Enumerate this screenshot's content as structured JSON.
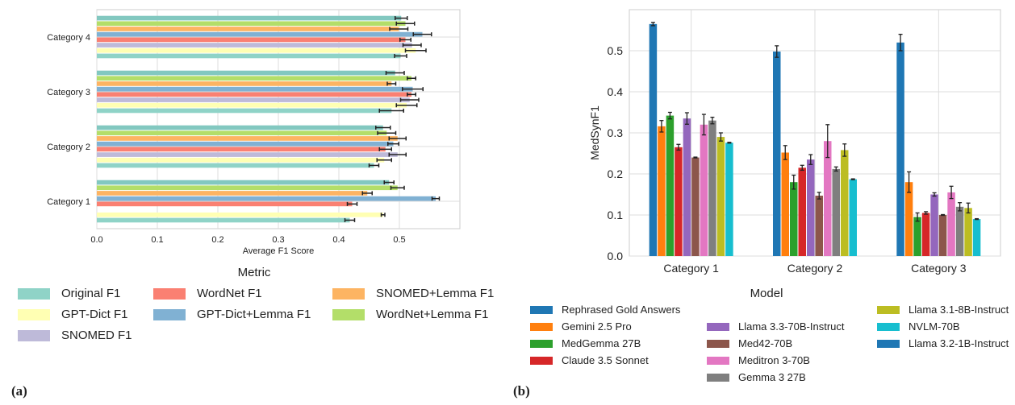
{
  "panel_labels": [
    "(a)",
    "(b)"
  ],
  "chart_data": [
    {
      "type": "bar",
      "orientation": "horizontal",
      "title": "",
      "xlabel": "Average F1 Score",
      "ylabel": "",
      "xlim": [
        0,
        0.6
      ],
      "xticks": [
        "0.0",
        "0.1",
        "0.2",
        "0.3",
        "0.4",
        "0.5"
      ],
      "grid": true,
      "legend_title": "Metric",
      "legend_position": "below",
      "categories": [
        "Category 1",
        "Category 2",
        "Category 3",
        "Category 4"
      ],
      "series": [
        {
          "name": "Original F1",
          "color": "#8fd3c7",
          "values": [
            0.418,
            0.458,
            0.487,
            0.502
          ],
          "errors": [
            0.008,
            0.008,
            0.02,
            0.01
          ]
        },
        {
          "name": "GPT-Dict F1",
          "color": "#ffffb3",
          "values": [
            0.473,
            0.475,
            0.512,
            0.527
          ],
          "errors": [
            0.003,
            0.012,
            0.017,
            0.017
          ]
        },
        {
          "name": "SNOMED F1",
          "color": "#bebad9",
          "values": [
            null,
            0.497,
            0.517,
            0.521
          ],
          "errors": [
            null,
            0.014,
            0.015,
            0.015
          ]
        },
        {
          "name": "WordNet F1",
          "color": "#fa8072",
          "values": [
            0.422,
            0.477,
            0.52,
            0.51
          ],
          "errors": [
            0.008,
            0.01,
            0.007,
            0.009
          ]
        },
        {
          "name": "GPT-Dict+Lemma F1",
          "color": "#80b1d3",
          "values": [
            0.56,
            0.49,
            0.522,
            0.538
          ],
          "errors": [
            0.006,
            0.009,
            0.017,
            0.015
          ]
        },
        {
          "name": "SNOMED+Lemma F1",
          "color": "#fdb462",
          "values": [
            0.447,
            0.497,
            0.487,
            0.499
          ],
          "errors": [
            0.008,
            0.014,
            0.007,
            0.015
          ]
        },
        {
          "name": "WordNet+Lemma F1",
          "color": "#b3de69",
          "values": [
            0.497,
            0.479,
            0.52,
            0.51
          ],
          "errors": [
            0.011,
            0.015,
            0.007,
            0.015
          ]
        },
        {
          "name": "",
          "color": "#82c8c0",
          "values": [
            0.483,
            0.473,
            0.493,
            0.503
          ],
          "errors": [
            0.008,
            0.012,
            0.015,
            0.01
          ]
        }
      ]
    },
    {
      "type": "bar",
      "orientation": "vertical",
      "title": "",
      "xlabel": "",
      "ylabel": "MedSynF1",
      "ylim": [
        0,
        0.6
      ],
      "yticks": [
        "0.0",
        "0.1",
        "0.2",
        "0.3",
        "0.4",
        "0.5"
      ],
      "grid": true,
      "legend_title": "Model",
      "legend_position": "below",
      "categories": [
        "Category 1",
        "Category 2",
        "Category 3"
      ],
      "series": [
        {
          "name": "Rephrased Gold Answers",
          "color": "#1f77b4",
          "values": [
            0.565,
            0.498,
            0.52
          ],
          "errors": [
            0.004,
            0.014,
            0.02
          ]
        },
        {
          "name": "Gemini 2.5 Pro",
          "color": "#ff7f0e",
          "values": [
            0.316,
            0.252,
            0.18
          ],
          "errors": [
            0.014,
            0.017,
            0.025
          ]
        },
        {
          "name": "MedGemma 27B",
          "color": "#2ca02c",
          "values": [
            0.342,
            0.18,
            0.095
          ],
          "errors": [
            0.008,
            0.017,
            0.01
          ]
        },
        {
          "name": "Claude 3.5 Sonnet",
          "color": "#d62728",
          "values": [
            0.265,
            0.215,
            0.105
          ],
          "errors": [
            0.007,
            0.006,
            0.003
          ]
        },
        {
          "name": "Llama 3.3-70B-Instruct",
          "color": "#9467bd",
          "values": [
            0.335,
            0.235,
            0.15
          ],
          "errors": [
            0.014,
            0.012,
            0.004
          ]
        },
        {
          "name": "Med42-70B",
          "color": "#8c564b",
          "values": [
            0.24,
            0.147,
            0.1
          ],
          "errors": [
            0.001,
            0.008,
            0.001
          ]
        },
        {
          "name": "Meditron 3-70B",
          "color": "#e377c2",
          "values": [
            0.32,
            0.28,
            0.155
          ],
          "errors": [
            0.025,
            0.04,
            0.015
          ]
        },
        {
          "name": "Gemma 3 27B",
          "color": "#7f7f7f",
          "values": [
            0.33,
            0.212,
            0.12
          ],
          "errors": [
            0.008,
            0.005,
            0.01
          ]
        },
        {
          "name": "Llama 3.1-8B-Instruct",
          "color": "#bcbd22",
          "values": [
            0.29,
            0.258,
            0.117
          ],
          "errors": [
            0.01,
            0.015,
            0.012
          ]
        },
        {
          "name": "NVLM-70B",
          "color": "#17becf",
          "values": [
            0.276,
            0.187,
            0.09
          ],
          "errors": [
            0.001,
            0.001,
            0.001
          ]
        },
        {
          "name": "Llama 3.2-1B-Instruct",
          "color": "#1f77b4",
          "values": [
            null,
            null,
            null
          ],
          "errors": [
            null,
            null,
            null
          ]
        }
      ]
    }
  ]
}
